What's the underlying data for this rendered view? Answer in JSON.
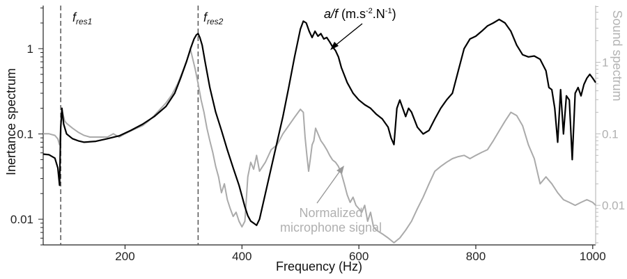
{
  "chart_data": {
    "type": "line",
    "title": "",
    "xlabel": "Frequency (Hz)",
    "ylabel_left": "Inertance spectrum",
    "ylabel_right": "Sound spectrum",
    "xlim": [
      60,
      1005
    ],
    "ylim_left": [
      0.005,
      3.2
    ],
    "ylim_right": [
      0.0028,
      6.2
    ],
    "yscale": "log",
    "grid": false,
    "x_ticks": [
      200,
      400,
      600,
      800,
      1000
    ],
    "x_tick_labels": [
      "200",
      "400",
      "600",
      "800",
      "1000"
    ],
    "y_left_ticks": [
      0.01,
      0.1,
      1
    ],
    "y_left_tick_labels": [
      "0.01",
      "0.1",
      "1"
    ],
    "y_right_ticks": [
      0.01,
      0.1,
      1
    ],
    "y_right_tick_labels": [
      "0.01",
      "0.1",
      "1"
    ],
    "colors": {
      "inertance": "#000000",
      "sound": "#aaaaaa",
      "resonance_line": "#555555"
    },
    "resonances": [
      {
        "label_main": "f",
        "label_sub": "res1",
        "x": 90
      },
      {
        "label_main": "f",
        "label_sub": "res2",
        "x": 325
      }
    ],
    "annotations": {
      "inertance": {
        "text_main": "a/f",
        "text_units_pre": " (m.s",
        "text_sup1": "-2",
        "text_units_mid": ".N",
        "text_sup2": "-1",
        "text_units_post": ")",
        "target": [
          560,
          0.8
        ]
      },
      "sound": {
        "line1": "Normalized",
        "line2": "microphone signal",
        "target": [
          590,
          0.035
        ]
      }
    },
    "series": [
      {
        "id": "inertance",
        "axis": "left",
        "x": [
          60,
          70,
          80,
          85,
          88,
          90,
          92,
          95,
          100,
          110,
          120,
          130,
          150,
          170,
          190,
          210,
          230,
          250,
          270,
          285,
          295,
          305,
          312,
          318,
          322,
          325,
          328,
          332,
          337,
          345,
          355,
          365,
          375,
          385,
          395,
          405,
          410,
          415,
          420,
          425,
          430,
          440,
          450,
          460,
          470,
          480,
          490,
          500,
          505,
          510,
          515,
          520,
          525,
          530,
          535,
          540,
          545,
          550,
          555,
          560,
          565,
          570,
          580,
          590,
          600,
          610,
          620,
          630,
          640,
          650,
          655,
          660,
          665,
          670,
          680,
          685,
          690,
          700,
          710,
          720,
          730,
          740,
          750,
          760,
          770,
          780,
          790,
          800,
          810,
          820,
          830,
          840,
          850,
          860,
          870,
          880,
          890,
          900,
          910,
          920,
          925,
          930,
          935,
          940,
          945,
          950,
          955,
          960,
          965,
          970,
          975,
          980,
          985,
          990,
          995,
          1000,
          1005
        ],
        "values": [
          0.058,
          0.057,
          0.052,
          0.04,
          0.025,
          0.12,
          0.2,
          0.13,
          0.1,
          0.088,
          0.083,
          0.08,
          0.082,
          0.088,
          0.095,
          0.11,
          0.13,
          0.16,
          0.21,
          0.3,
          0.45,
          0.7,
          1.0,
          1.3,
          1.45,
          1.5,
          1.35,
          1.1,
          0.7,
          0.35,
          0.18,
          0.11,
          0.065,
          0.04,
          0.025,
          0.014,
          0.011,
          0.0095,
          0.009,
          0.0085,
          0.01,
          0.02,
          0.04,
          0.08,
          0.16,
          0.35,
          0.8,
          1.7,
          2.1,
          2.0,
          1.6,
          1.35,
          1.6,
          1.4,
          1.5,
          1.3,
          1.35,
          1.2,
          1.05,
          0.95,
          0.8,
          0.6,
          0.4,
          0.3,
          0.25,
          0.22,
          0.2,
          0.17,
          0.15,
          0.12,
          0.09,
          0.075,
          0.2,
          0.25,
          0.16,
          0.2,
          0.18,
          0.12,
          0.1,
          0.11,
          0.15,
          0.2,
          0.25,
          0.3,
          0.55,
          1.0,
          1.3,
          1.4,
          1.6,
          1.85,
          2.0,
          2.2,
          2.0,
          1.6,
          1.1,
          0.85,
          0.8,
          0.82,
          0.75,
          0.55,
          0.35,
          0.33,
          0.2,
          0.08,
          0.33,
          0.1,
          0.28,
          0.25,
          0.05,
          0.3,
          0.35,
          0.28,
          0.38,
          0.45,
          0.5,
          0.45,
          0.4
        ]
      },
      {
        "id": "sound",
        "axis": "right",
        "x": [
          60,
          70,
          80,
          85,
          88,
          90,
          93,
          97,
          100,
          110,
          120,
          130,
          140,
          150,
          160,
          170,
          180,
          190,
          200,
          210,
          220,
          230,
          240,
          250,
          260,
          270,
          280,
          290,
          300,
          308,
          312,
          316,
          320,
          325,
          330,
          335,
          340,
          345,
          350,
          355,
          360,
          365,
          370,
          375,
          380,
          385,
          390,
          395,
          400,
          405,
          410,
          415,
          420,
          425,
          430,
          440,
          450,
          460,
          470,
          480,
          490,
          500,
          505,
          508,
          511,
          514,
          517,
          520,
          523,
          526,
          530,
          535,
          540,
          545,
          550,
          555,
          560,
          565,
          570,
          575,
          580,
          585,
          590,
          595,
          600,
          605,
          610,
          615,
          620,
          625,
          630,
          640,
          650,
          660,
          670,
          680,
          690,
          700,
          710,
          720,
          730,
          740,
          750,
          760,
          770,
          780,
          790,
          800,
          810,
          820,
          830,
          840,
          850,
          860,
          870,
          880,
          890,
          900,
          910,
          920,
          930,
          940,
          950,
          960,
          970,
          980,
          990,
          1000,
          1005
        ],
        "values": [
          0.1,
          0.1,
          0.095,
          0.085,
          0.07,
          0.13,
          0.2,
          0.15,
          0.14,
          0.12,
          0.105,
          0.095,
          0.09,
          0.09,
          0.09,
          0.09,
          0.1,
          0.09,
          0.1,
          0.11,
          0.12,
          0.13,
          0.15,
          0.18,
          0.22,
          0.27,
          0.35,
          0.5,
          0.8,
          1.2,
          1.5,
          1.1,
          0.8,
          0.5,
          0.3,
          0.2,
          0.12,
          0.08,
          0.055,
          0.035,
          0.025,
          0.015,
          0.02,
          0.012,
          0.009,
          0.007,
          0.008,
          0.006,
          0.005,
          0.006,
          0.025,
          0.04,
          0.032,
          0.05,
          0.03,
          0.04,
          0.06,
          0.07,
          0.1,
          0.13,
          0.17,
          0.22,
          0.2,
          0.09,
          0.05,
          0.03,
          0.045,
          0.07,
          0.08,
          0.12,
          0.1,
          0.08,
          0.07,
          0.06,
          0.05,
          0.043,
          0.04,
          0.035,
          0.028,
          0.02,
          0.014,
          0.011,
          0.013,
          0.01,
          0.009,
          0.008,
          0.01,
          0.006,
          0.008,
          0.005,
          0.0045,
          0.004,
          0.0035,
          0.003,
          0.0035,
          0.0045,
          0.006,
          0.009,
          0.013,
          0.02,
          0.03,
          0.035,
          0.04,
          0.045,
          0.048,
          0.05,
          0.045,
          0.05,
          0.055,
          0.06,
          0.08,
          0.11,
          0.15,
          0.2,
          0.18,
          0.13,
          0.07,
          0.045,
          0.02,
          0.025,
          0.02,
          0.015,
          0.012,
          0.011,
          0.01,
          0.011,
          0.012,
          0.011,
          0.01
        ]
      }
    ]
  }
}
